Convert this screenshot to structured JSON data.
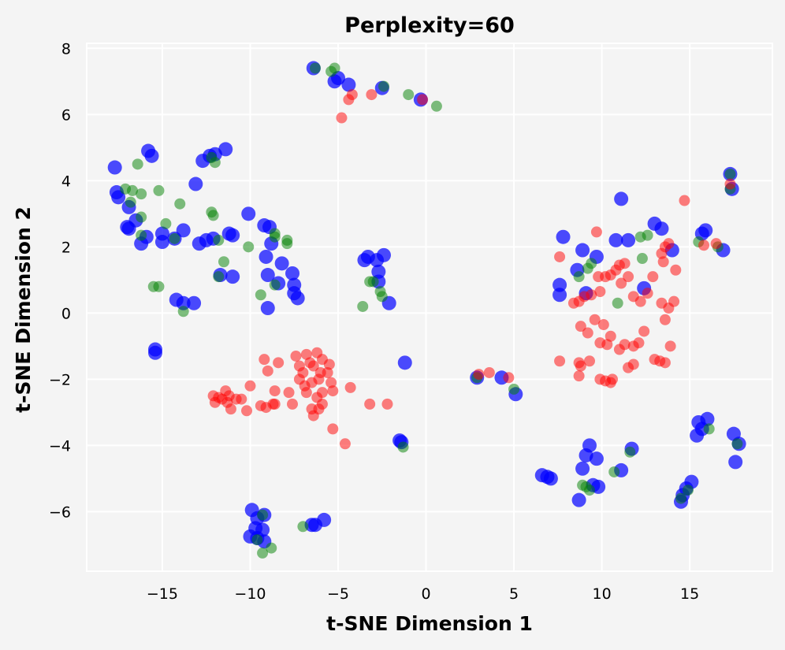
{
  "chart_data": {
    "type": "scatter",
    "title": "Perplexity=60",
    "xlabel": "t-SNE Dimension 1",
    "ylabel": "t-SNE Dimension 2",
    "xlim": [
      -19.3,
      19.7
    ],
    "ylim": [
      -7.8,
      8.15
    ],
    "grid": true,
    "xticks": [
      -15,
      -10,
      -5,
      0,
      5,
      10,
      15
    ],
    "yticks": [
      -6,
      -4,
      -2,
      0,
      2,
      4,
      6,
      8
    ],
    "xtick_labels": [
      "−15",
      "−10",
      "−5",
      "0",
      "5",
      "10",
      "15"
    ],
    "ytick_labels": [
      "−6",
      "−4",
      "−2",
      "0",
      "2",
      "4",
      "6",
      "8"
    ],
    "series": [
      {
        "name": "blue",
        "color": "#0000ff",
        "points": [
          [
            -6.4,
            7.4
          ],
          [
            -5.2,
            7.0
          ],
          [
            -5.0,
            7.1
          ],
          [
            -4.4,
            6.9
          ],
          [
            -2.5,
            6.8
          ],
          [
            -0.3,
            6.45
          ],
          [
            -17.7,
            4.4
          ],
          [
            -17.6,
            3.65
          ],
          [
            -17.5,
            3.5
          ],
          [
            -16.9,
            3.2
          ],
          [
            -17.0,
            2.6
          ],
          [
            -16.9,
            2.55
          ],
          [
            -15.8,
            4.9
          ],
          [
            -15.6,
            4.75
          ],
          [
            -12.7,
            4.6
          ],
          [
            -12.3,
            4.75
          ],
          [
            -12.0,
            4.8
          ],
          [
            -11.4,
            4.95
          ],
          [
            -13.1,
            3.9
          ],
          [
            -16.5,
            2.8
          ],
          [
            -16.2,
            2.1
          ],
          [
            -15.9,
            2.3
          ],
          [
            -15.0,
            2.4
          ],
          [
            -15.0,
            2.15
          ],
          [
            -14.3,
            2.25
          ],
          [
            -13.8,
            2.5
          ],
          [
            -12.9,
            2.1
          ],
          [
            -12.5,
            2.2
          ],
          [
            -12.1,
            2.25
          ],
          [
            -11.2,
            2.4
          ],
          [
            -11.0,
            2.35
          ],
          [
            -10.1,
            3.0
          ],
          [
            -9.2,
            2.65
          ],
          [
            -8.9,
            2.6
          ],
          [
            -8.8,
            2.1
          ],
          [
            -9.1,
            1.7
          ],
          [
            -8.2,
            1.5
          ],
          [
            -9.0,
            1.15
          ],
          [
            -7.6,
            1.2
          ],
          [
            -7.5,
            0.85
          ],
          [
            -7.5,
            0.6
          ],
          [
            -7.3,
            0.45
          ],
          [
            -8.4,
            0.9
          ],
          [
            -9.0,
            0.15
          ],
          [
            -11.7,
            1.15
          ],
          [
            -11.0,
            1.1
          ],
          [
            -14.2,
            0.4
          ],
          [
            -13.8,
            0.3
          ],
          [
            -13.2,
            0.3
          ],
          [
            -15.4,
            -1.1
          ],
          [
            -15.4,
            -1.2
          ],
          [
            -3.5,
            1.6
          ],
          [
            -3.3,
            1.7
          ],
          [
            -2.8,
            1.6
          ],
          [
            -2.4,
            1.75
          ],
          [
            -2.7,
            1.25
          ],
          [
            -2.7,
            0.95
          ],
          [
            -2.1,
            0.3
          ],
          [
            -1.2,
            -1.5
          ],
          [
            -1.5,
            -3.85
          ],
          [
            -1.4,
            -3.9
          ],
          [
            2.9,
            -1.95
          ],
          [
            4.3,
            -1.95
          ],
          [
            5.1,
            -2.45
          ],
          [
            7.8,
            2.3
          ],
          [
            7.6,
            0.85
          ],
          [
            7.6,
            0.55
          ],
          [
            8.6,
            1.3
          ],
          [
            8.9,
            1.9
          ],
          [
            9.1,
            0.6
          ],
          [
            9.7,
            1.7
          ],
          [
            11.1,
            3.45
          ],
          [
            10.8,
            2.2
          ],
          [
            11.5,
            2.2
          ],
          [
            13.0,
            2.7
          ],
          [
            13.4,
            2.55
          ],
          [
            14.0,
            1.9
          ],
          [
            12.4,
            0.75
          ],
          [
            15.7,
            2.4
          ],
          [
            15.9,
            2.5
          ],
          [
            16.9,
            1.9
          ],
          [
            17.3,
            4.2
          ],
          [
            17.4,
            3.75
          ],
          [
            15.5,
            -3.3
          ],
          [
            15.4,
            -3.7
          ],
          [
            16.0,
            -3.2
          ],
          [
            15.7,
            -3.5
          ],
          [
            17.5,
            -3.65
          ],
          [
            17.8,
            -3.95
          ],
          [
            17.6,
            -4.5
          ],
          [
            9.3,
            -4.0
          ],
          [
            9.1,
            -4.3
          ],
          [
            9.7,
            -4.4
          ],
          [
            8.9,
            -4.7
          ],
          [
            9.5,
            -5.2
          ],
          [
            9.8,
            -5.25
          ],
          [
            11.1,
            -4.75
          ],
          [
            11.7,
            -4.1
          ],
          [
            6.6,
            -4.9
          ],
          [
            6.9,
            -4.95
          ],
          [
            7.1,
            -5.0
          ],
          [
            8.7,
            -5.65
          ],
          [
            15.1,
            -5.1
          ],
          [
            14.6,
            -5.5
          ],
          [
            14.8,
            -5.3
          ],
          [
            14.5,
            -5.7
          ],
          [
            -9.9,
            -5.95
          ],
          [
            -9.6,
            -6.2
          ],
          [
            -9.2,
            -6.1
          ],
          [
            -9.7,
            -6.5
          ],
          [
            -9.3,
            -6.55
          ],
          [
            -10.0,
            -6.75
          ],
          [
            -9.6,
            -6.8
          ],
          [
            -9.2,
            -6.9
          ],
          [
            -6.5,
            -6.4
          ],
          [
            -6.3,
            -6.4
          ],
          [
            -5.8,
            -6.25
          ]
        ]
      },
      {
        "name": "green",
        "color": "#008000",
        "points": [
          [
            -6.3,
            7.4
          ],
          [
            -5.4,
            7.3
          ],
          [
            -5.2,
            7.4
          ],
          [
            -2.4,
            6.85
          ],
          [
            -1.0,
            6.6
          ],
          [
            0.6,
            6.25
          ],
          [
            -17.1,
            3.75
          ],
          [
            -16.7,
            3.7
          ],
          [
            -16.8,
            3.35
          ],
          [
            -16.4,
            4.5
          ],
          [
            -16.2,
            3.6
          ],
          [
            -15.2,
            3.7
          ],
          [
            -14.0,
            3.3
          ],
          [
            -12.2,
            4.7
          ],
          [
            -12.0,
            4.55
          ],
          [
            -12.2,
            3.05
          ],
          [
            -12.1,
            2.95
          ],
          [
            -16.2,
            2.9
          ],
          [
            -16.2,
            2.35
          ],
          [
            -14.8,
            2.7
          ],
          [
            -14.3,
            2.25
          ],
          [
            -11.8,
            2.2
          ],
          [
            -11.5,
            1.55
          ],
          [
            -11.8,
            1.1
          ],
          [
            -10.1,
            2.0
          ],
          [
            -8.6,
            2.4
          ],
          [
            -8.6,
            2.3
          ],
          [
            -7.9,
            2.2
          ],
          [
            -7.9,
            2.1
          ],
          [
            -15.5,
            0.8
          ],
          [
            -15.2,
            0.8
          ],
          [
            -13.8,
            0.05
          ],
          [
            -9.4,
            0.55
          ],
          [
            -8.6,
            0.85
          ],
          [
            -3.2,
            0.95
          ],
          [
            -3.0,
            0.95
          ],
          [
            -2.6,
            0.65
          ],
          [
            -2.5,
            0.5
          ],
          [
            -3.6,
            0.2
          ],
          [
            -1.3,
            -4.05
          ],
          [
            2.9,
            -1.95
          ],
          [
            5.0,
            -2.3
          ],
          [
            8.7,
            1.1
          ],
          [
            9.2,
            1.35
          ],
          [
            9.4,
            1.5
          ],
          [
            10.9,
            0.3
          ],
          [
            12.2,
            2.3
          ],
          [
            12.6,
            2.35
          ],
          [
            12.3,
            1.65
          ],
          [
            15.5,
            2.15
          ],
          [
            16.6,
            2.0
          ],
          [
            17.3,
            4.2
          ],
          [
            17.3,
            3.75
          ],
          [
            16.1,
            -3.5
          ],
          [
            17.7,
            -3.95
          ],
          [
            8.9,
            -5.2
          ],
          [
            9.1,
            -5.25
          ],
          [
            9.3,
            -5.35
          ],
          [
            10.7,
            -4.8
          ],
          [
            11.6,
            -4.2
          ],
          [
            14.5,
            -5.6
          ],
          [
            14.9,
            -5.35
          ],
          [
            -9.3,
            -6.1
          ],
          [
            -9.6,
            -6.85
          ],
          [
            -8.8,
            -7.1
          ],
          [
            -9.3,
            -7.25
          ],
          [
            -7.0,
            -6.45
          ]
        ]
      },
      {
        "name": "red",
        "color": "#ff0000",
        "points": [
          [
            -4.4,
            6.45
          ],
          [
            -4.2,
            6.6
          ],
          [
            -3.1,
            6.6
          ],
          [
            -4.8,
            5.9
          ],
          [
            -0.2,
            6.45
          ],
          [
            -9.2,
            -1.4
          ],
          [
            -7.4,
            -1.3
          ],
          [
            -7.2,
            -1.6
          ],
          [
            -6.8,
            -1.25
          ],
          [
            -6.2,
            -1.2
          ],
          [
            -5.9,
            -1.4
          ],
          [
            -5.5,
            -1.55
          ],
          [
            -8.4,
            -1.5
          ],
          [
            -9.0,
            -1.75
          ],
          [
            -6.6,
            -1.5
          ],
          [
            -6.4,
            -1.6
          ],
          [
            -6.0,
            -1.8
          ],
          [
            -5.6,
            -1.8
          ],
          [
            -7.0,
            -1.8
          ],
          [
            -7.2,
            -2.0
          ],
          [
            -6.9,
            -2.2
          ],
          [
            -6.5,
            -2.1
          ],
          [
            -6.1,
            -2.0
          ],
          [
            -5.4,
            -2.1
          ],
          [
            -10.0,
            -2.2
          ],
          [
            -8.6,
            -2.35
          ],
          [
            -7.8,
            -2.4
          ],
          [
            -6.8,
            -2.4
          ],
          [
            -6.2,
            -2.55
          ],
          [
            -5.9,
            -2.4
          ],
          [
            -5.3,
            -2.35
          ],
          [
            -12.1,
            -2.5
          ],
          [
            -11.8,
            -2.55
          ],
          [
            -11.6,
            -2.6
          ],
          [
            -11.4,
            -2.35
          ],
          [
            -11.2,
            -2.5
          ],
          [
            -10.8,
            -2.6
          ],
          [
            -10.5,
            -2.6
          ],
          [
            -11.3,
            -2.7
          ],
          [
            -12.0,
            -2.7
          ],
          [
            -8.6,
            -2.75
          ],
          [
            -7.6,
            -2.75
          ],
          [
            -6.5,
            -2.9
          ],
          [
            -6.4,
            -3.1
          ],
          [
            -6.1,
            -2.9
          ],
          [
            -5.9,
            -2.75
          ],
          [
            -9.4,
            -2.8
          ],
          [
            -9.1,
            -2.85
          ],
          [
            -8.7,
            -2.75
          ],
          [
            -11.1,
            -2.9
          ],
          [
            -10.2,
            -2.95
          ],
          [
            -5.3,
            -3.5
          ],
          [
            -4.6,
            -3.95
          ],
          [
            -4.3,
            -2.25
          ],
          [
            -3.2,
            -2.75
          ],
          [
            -2.2,
            -2.75
          ],
          [
            3.0,
            -1.85
          ],
          [
            3.6,
            -1.8
          ],
          [
            4.7,
            -1.95
          ],
          [
            7.6,
            1.7
          ],
          [
            9.7,
            2.45
          ],
          [
            8.4,
            0.3
          ],
          [
            8.7,
            0.35
          ],
          [
            9.0,
            0.5
          ],
          [
            9.4,
            0.55
          ],
          [
            9.9,
            0.65
          ],
          [
            9.8,
            1.1
          ],
          [
            10.2,
            1.1
          ],
          [
            10.5,
            1.15
          ],
          [
            10.8,
            1.3
          ],
          [
            11.0,
            1.45
          ],
          [
            11.3,
            1.5
          ],
          [
            11.5,
            1.1
          ],
          [
            11.1,
            0.9
          ],
          [
            11.8,
            0.5
          ],
          [
            12.2,
            0.35
          ],
          [
            13.4,
            0.3
          ],
          [
            13.8,
            0.15
          ],
          [
            14.1,
            0.35
          ],
          [
            13.6,
            -0.2
          ],
          [
            13.5,
            1.55
          ],
          [
            14.2,
            1.3
          ],
          [
            13.6,
            2.0
          ],
          [
            13.8,
            2.1
          ],
          [
            13.4,
            1.8
          ],
          [
            14.7,
            3.4
          ],
          [
            15.8,
            2.05
          ],
          [
            16.5,
            2.1
          ],
          [
            17.3,
            3.9
          ],
          [
            12.6,
            0.6
          ],
          [
            12.9,
            1.1
          ],
          [
            8.8,
            -0.4
          ],
          [
            9.6,
            -0.2
          ],
          [
            9.2,
            -0.6
          ],
          [
            10.1,
            -0.35
          ],
          [
            10.5,
            -0.7
          ],
          [
            10.3,
            -0.95
          ],
          [
            9.9,
            -0.9
          ],
          [
            11.0,
            -1.1
          ],
          [
            11.3,
            -0.95
          ],
          [
            11.8,
            -1.0
          ],
          [
            12.1,
            -0.9
          ],
          [
            12.4,
            -0.55
          ],
          [
            13.0,
            -1.4
          ],
          [
            13.3,
            -1.45
          ],
          [
            13.6,
            -1.5
          ],
          [
            13.9,
            -1.0
          ],
          [
            7.6,
            -1.45
          ],
          [
            8.7,
            -1.5
          ],
          [
            8.8,
            -1.6
          ],
          [
            9.3,
            -1.45
          ],
          [
            8.7,
            -1.9
          ],
          [
            9.9,
            -2.0
          ],
          [
            10.2,
            -2.05
          ],
          [
            10.5,
            -2.1
          ],
          [
            10.6,
            -2.0
          ],
          [
            11.5,
            -1.65
          ],
          [
            11.8,
            -1.55
          ]
        ]
      }
    ]
  }
}
